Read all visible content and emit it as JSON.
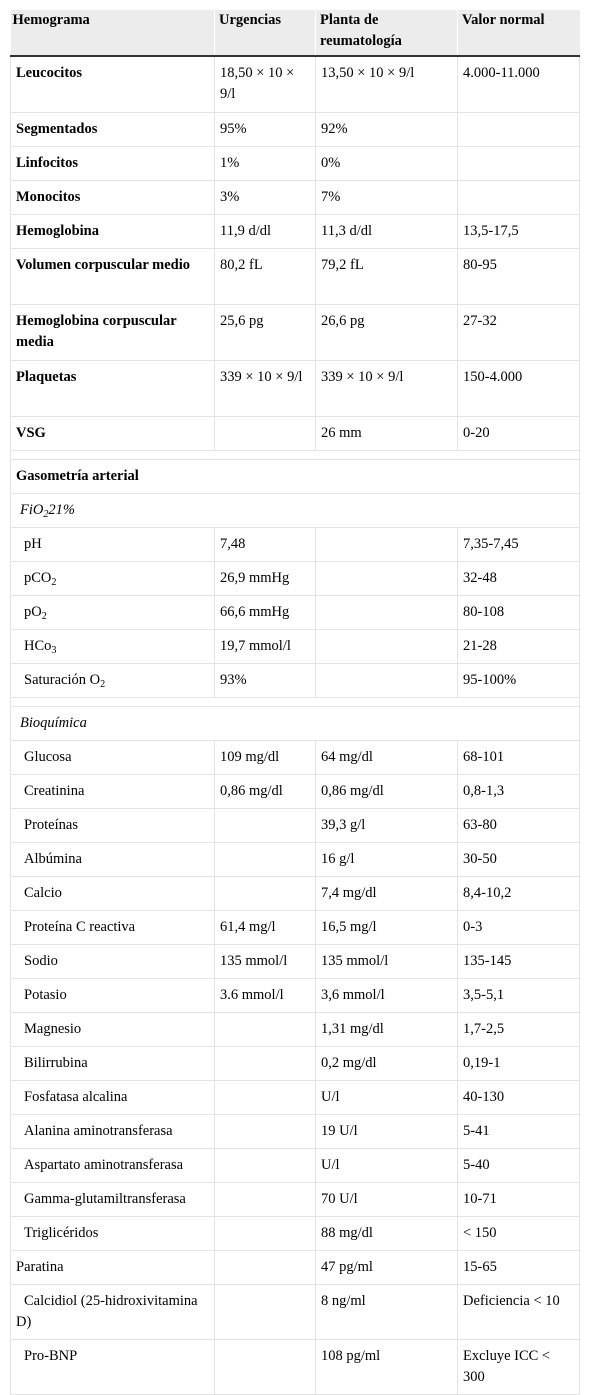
{
  "headers": [
    "Hemograma",
    "Urgencias",
    "Planta de reumatología",
    "Valor normal"
  ],
  "hemograma": [
    {
      "label": "Leucocitos",
      "urg": "18,50 × 10 × 9/l",
      "planta": "13,50 × 10 × 9/l",
      "normal": "4.000-11.000"
    },
    {
      "label": "Segmentados",
      "urg": "95%",
      "planta": "92%",
      "normal": ""
    },
    {
      "label": "Linfocitos",
      "urg": "1%",
      "planta": "0%",
      "normal": ""
    },
    {
      "label": "Monocitos",
      "urg": "3%",
      "planta": "7%",
      "normal": ""
    },
    {
      "label": "Hemoglobina",
      "urg": "11,9 d/dl",
      "planta": "11,3 d/dl",
      "normal": "13,5-17,5"
    },
    {
      "label": "Volumen corpuscular medio",
      "urg": "80,2 fL",
      "planta": "79,2 fL",
      "normal": "80-95"
    },
    {
      "label": "Hemoglobina corpuscular media",
      "urg": "25,6 pg",
      "planta": "26,6 pg",
      "normal": "27-32"
    },
    {
      "label": "Plaquetas",
      "urg": "339 × 10 × 9/l",
      "planta": "339 × 10 × 9/l",
      "normal": "150-4.000"
    },
    {
      "label": "VSG",
      "urg": "",
      "planta": "26 mm",
      "normal": "0-20"
    }
  ],
  "gaso": {
    "title": "Gasometría arterial",
    "fio2_main": "FiO",
    "fio2_sub": "2",
    "fio2_tail": "21%",
    "rows": [
      {
        "label": "pH",
        "sub": "",
        "urg": "7,48",
        "planta": "",
        "normal": "7,35-7,45"
      },
      {
        "label": "pCO",
        "sub": "2",
        "urg": "26,9 mmHg",
        "planta": "",
        "normal": "32-48"
      },
      {
        "label": "pO",
        "sub": "2",
        "urg": "66,6 mmHg",
        "planta": "",
        "normal": "80-108"
      },
      {
        "label": "HCo",
        "sub": "3",
        "urg": "19,7 mmol/l",
        "planta": "",
        "normal": "21-28"
      },
      {
        "label": "Saturación O",
        "sub": "2",
        "urg": "93%",
        "planta": "",
        "normal": "95-100%"
      }
    ]
  },
  "bio": {
    "title": "Bioquímica",
    "rows": [
      {
        "label": "Glucosa",
        "urg": "109 mg/dl",
        "planta": "64 mg/dl",
        "normal": "68-101"
      },
      {
        "label": "Creatinina",
        "urg": "0,86 mg/dl",
        "planta": "0,86 mg/dl",
        "normal": "0,8-1,3"
      },
      {
        "label": "Proteínas",
        "urg": "",
        "planta": "39,3 g/l",
        "normal": "63-80"
      },
      {
        "label": "Albúmina",
        "urg": "",
        "planta": "16 g/l",
        "normal": "30-50"
      },
      {
        "label": "Calcio",
        "urg": "",
        "planta": "7,4 mg/dl",
        "normal": "8,4-10,2"
      },
      {
        "label": "Proteína C reactiva",
        "urg": "61,4 mg/l",
        "planta": "16,5 mg/l",
        "normal": "0-3"
      },
      {
        "label": "Sodio",
        "urg": "135 mmol/l",
        "planta": "135 mmol/l",
        "normal": "135-145"
      },
      {
        "label": "Potasio",
        "urg": "3.6 mmol/l",
        "planta": "3,6 mmol/l",
        "normal": "3,5-5,1"
      },
      {
        "label": "Magnesio",
        "urg": "",
        "planta": "1,31 mg/dl",
        "normal": "1,7-2,5"
      },
      {
        "label": "Bilirrubina",
        "urg": "",
        "planta": "0,2 mg/dl",
        "normal": "0,19-1"
      },
      {
        "label": "Fosfatasa alcalina",
        "urg": "",
        "planta": "U/l",
        "normal": "40-130"
      },
      {
        "label": "Alanina aminotransferasa",
        "urg": "",
        "planta": "19 U/l",
        "normal": "5-41"
      },
      {
        "label": "Aspartato aminotransferasa",
        "urg": "",
        "planta": "U/l",
        "normal": "5-40"
      },
      {
        "label": "Gamma-glutamiltransferasa",
        "urg": "",
        "planta": "70 U/l",
        "normal": "10-71"
      },
      {
        "label": "Triglicéridos",
        "urg": "",
        "planta": "88 mg/dl",
        "normal": "< 150"
      },
      {
        "label": "Paratina",
        "urg": "",
        "planta": "47 pg/ml",
        "normal": "15-65"
      },
      {
        "label": "Calcidiol (25-hidroxivitamina D)",
        "urg": "",
        "planta": "8 ng/ml",
        "normal": "Deficiencia < 10"
      },
      {
        "label": "Pro-BNP",
        "urg": "",
        "planta": "108 pg/ml",
        "normal": "Excluye ICC < 300"
      }
    ]
  }
}
